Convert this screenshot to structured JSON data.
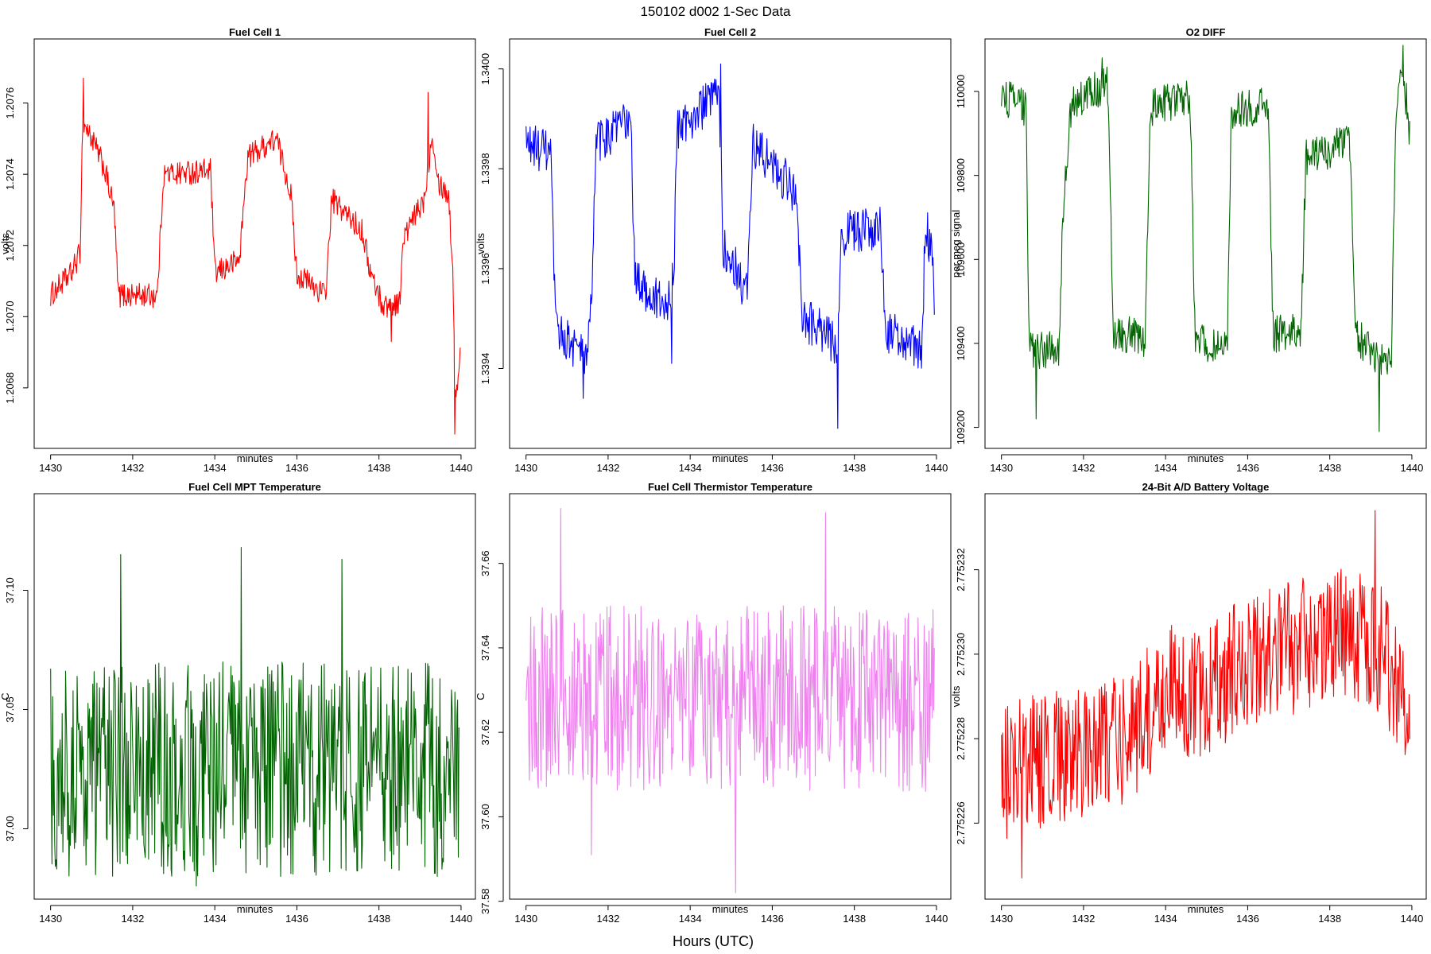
{
  "figure": {
    "title": "150102   d002   1-Sec Data",
    "xlabel": "Hours (UTC)"
  },
  "chart_data": [
    {
      "type": "line",
      "title": "Fuel Cell 1",
      "xlabel": "minutes",
      "ylabel": "volts",
      "color": "#ff0000",
      "xlim": [
        1429.6,
        1440.35
      ],
      "ylim": [
        1.20663,
        1.20778
      ],
      "xticks": [
        1430,
        1432,
        1434,
        1436,
        1438,
        1440
      ],
      "xtick_labels": [
        "1430",
        "1432",
        "1434",
        "1436",
        "1438",
        "1440"
      ],
      "yticks": [
        1.2068,
        1.207,
        1.2072,
        1.2074,
        1.2076
      ],
      "ytick_labels": [
        "1.2068",
        "1.2070",
        "1.2072",
        "1.2074",
        "1.2076"
      ],
      "x_start": 1430.0,
      "x_end": 1439.98,
      "levels": [
        [
          1430.0,
          1.20706
        ],
        [
          1430.5,
          1.20712
        ],
        [
          1430.72,
          1.20718
        ],
        [
          1430.78,
          1.20755
        ],
        [
          1431.0,
          1.2075
        ],
        [
          1431.3,
          1.20742
        ],
        [
          1431.55,
          1.2073
        ],
        [
          1431.65,
          1.20706
        ],
        [
          1432.6,
          1.20706
        ],
        [
          1432.75,
          1.2074
        ],
        [
          1433.9,
          1.20741
        ],
        [
          1434.0,
          1.20712
        ],
        [
          1434.6,
          1.20716
        ],
        [
          1434.8,
          1.20745
        ],
        [
          1435.5,
          1.2075
        ],
        [
          1435.85,
          1.20735
        ],
        [
          1436.0,
          1.20712
        ],
        [
          1436.7,
          1.20706
        ],
        [
          1436.85,
          1.20733
        ],
        [
          1437.6,
          1.20724
        ],
        [
          1437.8,
          1.20712
        ],
        [
          1438.1,
          1.20703
        ],
        [
          1438.5,
          1.20704
        ],
        [
          1438.6,
          1.20722
        ],
        [
          1439.1,
          1.20733
        ],
        [
          1439.3,
          1.20752
        ],
        [
          1439.45,
          1.20738
        ],
        [
          1439.7,
          1.20734
        ],
        [
          1439.8,
          1.20712
        ],
        [
          1439.88,
          1.20675
        ],
        [
          1439.98,
          1.20692
        ]
      ],
      "noise": 3.5e-05,
      "spikes": [
        [
          1430.8,
          1.20767
        ],
        [
          1439.2,
          1.20763
        ],
        [
          1439.84,
          1.20667
        ],
        [
          1438.3,
          1.20693
        ]
      ]
    },
    {
      "type": "line",
      "title": "Fuel Cell 2",
      "xlabel": "minutes",
      "ylabel": "volts",
      "color": "#0000ff",
      "xlim": [
        1429.6,
        1440.35
      ],
      "ylim": [
        1.33924,
        1.34006
      ],
      "xticks": [
        1430,
        1432,
        1434,
        1436,
        1438,
        1440
      ],
      "xtick_labels": [
        "1430",
        "1432",
        "1434",
        "1436",
        "1438",
        "1440"
      ],
      "yticks": [
        1.3394,
        1.3396,
        1.3398,
        1.34
      ],
      "ytick_labels": [
        "1.3394",
        "1.3396",
        "1.3398",
        "1.3400"
      ],
      "x_start": 1430.0,
      "x_end": 1439.95,
      "levels": [
        [
          1430.0,
          1.33985
        ],
        [
          1430.6,
          1.33983
        ],
        [
          1430.72,
          1.33948
        ],
        [
          1431.5,
          1.33942
        ],
        [
          1431.6,
          1.33955
        ],
        [
          1431.7,
          1.33985
        ],
        [
          1432.55,
          1.3399
        ],
        [
          1432.65,
          1.33958
        ],
        [
          1433.4,
          1.33952
        ],
        [
          1433.6,
          1.33958
        ],
        [
          1433.68,
          1.33988
        ],
        [
          1434.7,
          1.33995
        ],
        [
          1434.8,
          1.33965
        ],
        [
          1435.4,
          1.33955
        ],
        [
          1435.52,
          1.33985
        ],
        [
          1436.6,
          1.33975
        ],
        [
          1436.72,
          1.3395
        ],
        [
          1437.6,
          1.33945
        ],
        [
          1437.68,
          1.33967
        ],
        [
          1438.65,
          1.33968
        ],
        [
          1438.75,
          1.33948
        ],
        [
          1439.65,
          1.33943
        ],
        [
          1439.73,
          1.3397
        ],
        [
          1439.9,
          1.33962
        ],
        [
          1439.95,
          1.3395
        ]
      ],
      "noise": 4.5e-05,
      "spikes": [
        [
          1434.75,
          1.34001
        ],
        [
          1431.4,
          1.33934
        ],
        [
          1437.6,
          1.33928
        ],
        [
          1433.55,
          1.33941
        ]
      ]
    },
    {
      "type": "line",
      "title": "O2 DIFF",
      "xlabel": "minutes",
      "ylabel": "per meg signal",
      "color": "#006400",
      "xlim": [
        1429.6,
        1440.35
      ],
      "ylim": [
        109150,
        110125
      ],
      "xticks": [
        1430,
        1432,
        1434,
        1436,
        1438,
        1440
      ],
      "xtick_labels": [
        "1430",
        "1432",
        "1434",
        "1436",
        "1438",
        "1440"
      ],
      "yticks": [
        109200,
        109400,
        109600,
        109800,
        110000
      ],
      "ytick_labels": [
        "109200",
        "109400",
        "109600",
        "109800",
        "110000"
      ],
      "x_start": 1430.0,
      "x_end": 1439.95,
      "levels": [
        [
          1430.0,
          109990
        ],
        [
          1430.6,
          109960
        ],
        [
          1430.68,
          109380
        ],
        [
          1431.4,
          109390
        ],
        [
          1431.5,
          109700
        ],
        [
          1431.7,
          109970
        ],
        [
          1432.6,
          110020
        ],
        [
          1432.72,
          109430
        ],
        [
          1433.5,
          109410
        ],
        [
          1433.62,
          109960
        ],
        [
          1434.6,
          109990
        ],
        [
          1434.72,
          109410
        ],
        [
          1435.5,
          109380
        ],
        [
          1435.6,
          109950
        ],
        [
          1436.5,
          109970
        ],
        [
          1436.62,
          109420
        ],
        [
          1437.3,
          109430
        ],
        [
          1437.42,
          109840
        ],
        [
          1438.5,
          109880
        ],
        [
          1438.62,
          109420
        ],
        [
          1439.5,
          109340
        ],
        [
          1439.6,
          109900
        ],
        [
          1439.75,
          110080
        ],
        [
          1439.95,
          109900
        ]
      ],
      "noise": 45,
      "spikes": [
        [
          1430.85,
          109220
        ],
        [
          1439.2,
          109190
        ],
        [
          1439.78,
          110110
        ],
        [
          1432.45,
          110080
        ]
      ]
    },
    {
      "type": "line",
      "title": "Fuel Cell MPT Temperature",
      "xlabel": "minutes",
      "ylabel": "C",
      "color": "#006400",
      "xlim": [
        1429.6,
        1440.35
      ],
      "ylim": [
        36.9705,
        37.1405
      ],
      "xticks": [
        1430,
        1432,
        1434,
        1436,
        1438,
        1440
      ],
      "xtick_labels": [
        "1430",
        "1432",
        "1434",
        "1436",
        "1438",
        "1440"
      ],
      "yticks": [
        37.0,
        37.05,
        37.1
      ],
      "ytick_labels": [
        "37.00",
        "37.05",
        "37.10"
      ],
      "x_start": 1430.0,
      "x_end": 1439.95,
      "levels": [
        [
          1430.0,
          37.025
        ],
        [
          1439.95,
          37.025
        ]
      ],
      "noise": 0.045,
      "spikes": [
        [
          1431.7,
          37.115
        ],
        [
          1434.65,
          37.118
        ],
        [
          1433.55,
          36.976
        ],
        [
          1435.6,
          36.98
        ],
        [
          1437.1,
          37.113
        ]
      ]
    },
    {
      "type": "line",
      "title": "Fuel Cell Thermistor Temperature",
      "xlabel": "minutes",
      "ylabel": "C",
      "color": "#ee82ee",
      "xlim": [
        1429.6,
        1440.35
      ],
      "ylim": [
        37.5805,
        37.6765
      ],
      "xticks": [
        1430,
        1432,
        1434,
        1436,
        1438,
        1440
      ],
      "xtick_labels": [
        "1430",
        "1432",
        "1434",
        "1436",
        "1438",
        "1440"
      ],
      "yticks": [
        37.58,
        37.6,
        37.62,
        37.64,
        37.66
      ],
      "ytick_labels": [
        "37.58",
        "37.60",
        "37.62",
        "37.64",
        "37.66"
      ],
      "x_start": 1430.0,
      "x_end": 1439.95,
      "levels": [
        [
          1430.0,
          37.628
        ],
        [
          1439.95,
          37.628
        ]
      ],
      "noise": 0.022,
      "spikes": [
        [
          1430.85,
          37.673
        ],
        [
          1435.1,
          37.582
        ],
        [
          1437.3,
          37.672
        ],
        [
          1431.6,
          37.591
        ]
      ]
    },
    {
      "type": "line",
      "title": "24-Bit A/D Battery Voltage",
      "xlabel": "minutes",
      "ylabel": "volts",
      "color": "#ff0000",
      "xlim": [
        1429.6,
        1440.35
      ],
      "ylim": [
        2.7752242,
        2.7752338
      ],
      "xticks": [
        1430,
        1432,
        1434,
        1436,
        1438,
        1440
      ],
      "xtick_labels": [
        "1430",
        "1432",
        "1434",
        "1436",
        "1438",
        "1440"
      ],
      "yticks": [
        2.775226,
        2.775228,
        2.77523,
        2.775232
      ],
      "ytick_labels": [
        "2.775226",
        "2.775228",
        "2.775230",
        "2.775232"
      ],
      "x_start": 1430.0,
      "x_end": 1439.95,
      "levels": [
        [
          1430.0,
          2.7752272
        ],
        [
          1431.0,
          2.7752275
        ],
        [
          1432.0,
          2.7752277
        ],
        [
          1433.0,
          2.775228
        ],
        [
          1434.0,
          2.7752291
        ],
        [
          1435.0,
          2.775229
        ],
        [
          1436.0,
          2.7752299
        ],
        [
          1437.0,
          2.7752301
        ],
        [
          1438.0,
          2.7752305
        ],
        [
          1439.0,
          2.7752303
        ],
        [
          1439.6,
          2.7752296
        ],
        [
          1439.95,
          2.7752285
        ]
      ],
      "noise": 1.6e-06,
      "spikes": [
        [
          1430.5,
          2.7752247
        ],
        [
          1439.1,
          2.7752334
        ],
        [
          1439.9,
          2.7752279
        ]
      ]
    }
  ]
}
